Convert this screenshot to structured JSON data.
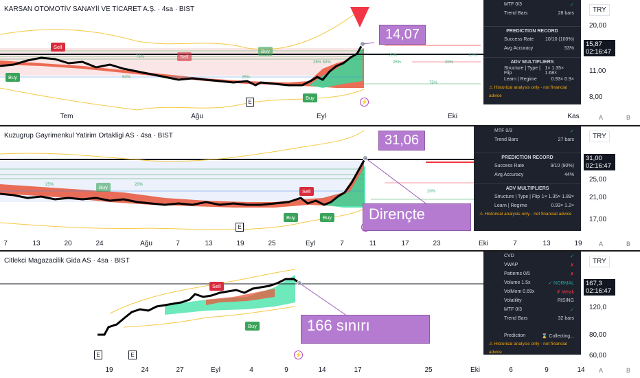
{
  "charts": [
    {
      "title": "KARSAN OTOMOTİV SANAYİİ VE TİCARET A.Ş. · 4sa · BIST",
      "currency": "TRY",
      "ticks": [
        "20,00",
        "15,87",
        "11,00",
        "8,00"
      ],
      "price": "15,87",
      "countdown": "02:16:47",
      "callout": "14,07",
      "times": [
        "Tem",
        "Ağu",
        "Eyl",
        "Eki",
        "Kas"
      ],
      "axis_a": "A",
      "axis_b": "B",
      "signals": {
        "buy": "Buy",
        "sell": "Sell",
        "e": "E"
      },
      "panel": {
        "mtf_label": "MTF 0/3",
        "mtf_value": "✓",
        "trend_bars_label": "Trend Bars",
        "trend_bars_value": "28 bars",
        "prediction_header": "PREDICTION RECORD",
        "success_label": "Success Rate",
        "success_value": "10/10 (100%)",
        "accuracy_label": "Avg Accuracy",
        "accuracy_value": "53%",
        "adv_header": "ADV MULTIPLIERS",
        "structure_label": "Structure | Type | Flip",
        "structure_value": "1× 1.35× 1.68×",
        "learn_label": "Learn | Regime",
        "learn_value": "0.93× 0.9×",
        "warning": "⚠ Historical analysis only - not financial advice"
      }
    },
    {
      "title": "Kuzugrup Gayrimenkul Yatirim Ortakligi AS · 4sa · BIST",
      "currency": "TRY",
      "ticks": [
        "31,00",
        "25,00",
        "21,00",
        "17,00"
      ],
      "price": "31,00",
      "countdown": "02:16:47",
      "callout": "31,06",
      "callout2": "Dirençte",
      "times": [
        "7",
        "13",
        "20",
        "24",
        "Ağu",
        "7",
        "13",
        "19",
        "25",
        "Eyl",
        "7",
        "11",
        "17",
        "23",
        "Eki",
        "7",
        "13",
        "19"
      ],
      "axis_a": "A",
      "axis_b": "B",
      "signals": {
        "buy": "Buy",
        "sell": "Sell",
        "e": "E"
      },
      "panel": {
        "mtf_label": "MTF 0/3",
        "mtf_value": "✓",
        "trend_bars_label": "Trend Bars",
        "trend_bars_value": "27 bars",
        "prediction_header": "PREDICTION RECORD",
        "success_label": "Success Rate",
        "success_value": "9/10 (90%)",
        "accuracy_label": "Avg Accuracy",
        "accuracy_value": "44%",
        "adv_header": "ADV MULTIPLIERS",
        "structure_label": "Structure | Type | Flip",
        "structure_value": "1× 1.35× 1.89×",
        "learn_label": "Learn | Regime",
        "learn_value": "0.93× 1.2×",
        "warning": "⚠ Historical analysis only - not financial advice"
      }
    },
    {
      "title": "Citlekci Magazacilik Gida AS · 4sa · BIST",
      "currency": "TRY",
      "ticks": [
        "167,3",
        "120,0",
        "80,00",
        "60,00"
      ],
      "price": "167,3",
      "countdown": "02:16:47",
      "callout": "166 sınırı",
      "times": [
        "19",
        "24",
        "27",
        "Eyl",
        "4",
        "9",
        "14",
        "17",
        "25",
        "Eki",
        "6",
        "9",
        "14"
      ],
      "axis_a": "A",
      "axis_b": "B",
      "signals": {
        "buy": "Buy",
        "sell": "Sell",
        "e": "E"
      },
      "panel": {
        "cvd_label": "CVD",
        "cvd_value": "✓",
        "vwap_label": "VWAP",
        "vwap_value": "✗",
        "patterns_label": "Patterns 0/5",
        "patterns_value": "✗",
        "volume_label": "Volume 1.5x",
        "volume_value": "✓ NORMAL",
        "volmom_label": "VolMom 0.69x",
        "volmom_value": "✗ Weak",
        "volatility_label": "Volatility",
        "volatility_value": "RISING",
        "mtf_label": "MTF 0/3",
        "mtf_value": "✓",
        "trend_bars_label": "Trend Bars",
        "trend_bars_value": "32 bars",
        "prediction_label": "Prediction",
        "prediction_value": "⌛ Collecting...",
        "warning": "⚠ Historical analysis only - not financial advice"
      }
    }
  ]
}
